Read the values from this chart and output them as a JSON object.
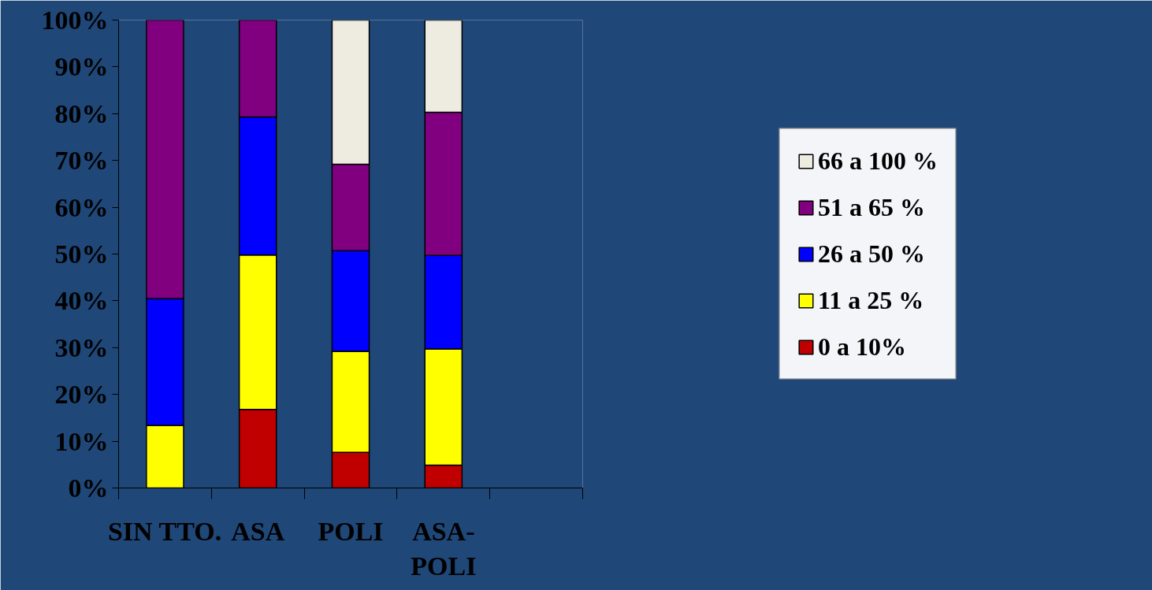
{
  "chart_data": {
    "type": "bar",
    "stacked": true,
    "categories": [
      "SIN TTO.",
      "ASA",
      "POLI",
      "ASA-POLI",
      null
    ],
    "series": [
      {
        "name": "0 a 10%",
        "color": "#c00000",
        "values": [
          null,
          16.8,
          7.6,
          4.9,
          null
        ]
      },
      {
        "name": "11 a 25 %",
        "color": "#ffff00",
        "values": [
          13.4,
          33.0,
          21.6,
          24.8,
          null
        ]
      },
      {
        "name": "26 a 50 %",
        "color": "#0000ff",
        "values": [
          27.1,
          29.5,
          21.5,
          20.0,
          null
        ]
      },
      {
        "name": "51 a 65 %",
        "color": "#800080",
        "values": [
          59.5,
          20.7,
          18.5,
          30.6,
          null
        ]
      },
      {
        "name": "66 a 100 %",
        "color": "#eeece1",
        "values": [
          null,
          null,
          30.8,
          19.7,
          null
        ]
      }
    ],
    "ylim": [
      0,
      100
    ],
    "yticks": [
      {
        "value": 0,
        "label": "0%"
      },
      {
        "value": 10,
        "label": "10%"
      },
      {
        "value": 20,
        "label": "20%"
      },
      {
        "value": 30,
        "label": "30%"
      },
      {
        "value": 40,
        "label": "40%"
      },
      {
        "value": 50,
        "label": "50%"
      },
      {
        "value": 60,
        "label": "60%"
      },
      {
        "value": 70,
        "label": "70%"
      },
      {
        "value": 80,
        "label": "80%"
      },
      {
        "value": 90,
        "label": "90%"
      },
      {
        "value": 100,
        "label": "100%"
      }
    ],
    "grid": false,
    "legend": "right"
  }
}
